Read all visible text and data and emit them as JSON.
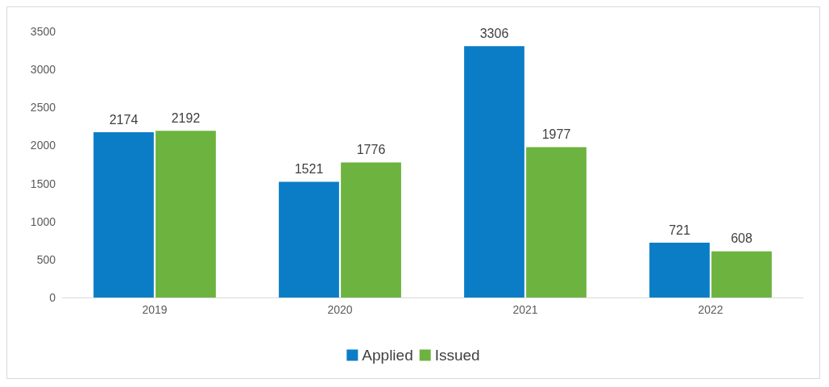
{
  "chart_data": {
    "type": "bar",
    "categories": [
      "2019",
      "2020",
      "2021",
      "2022"
    ],
    "series": [
      {
        "name": "Applied",
        "color": "#0a7dc6",
        "values": [
          2174,
          1521,
          3306,
          721
        ]
      },
      {
        "name": "Issued",
        "color": "#6cb33f",
        "values": [
          2192,
          1776,
          1977,
          608
        ]
      }
    ],
    "ylim": [
      0,
      3500
    ],
    "yticks": [
      0,
      500,
      1000,
      1500,
      2000,
      2500,
      3000,
      3500
    ],
    "grid": false,
    "legend": "bottom",
    "data_labels": true
  }
}
